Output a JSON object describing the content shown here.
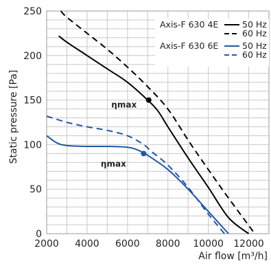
{
  "chart_data": {
    "type": "line",
    "xlabel": "Air flow [m³/h]",
    "ylabel": "Static pressure [Pa]",
    "xlim": [
      2000,
      13000
    ],
    "ylim": [
      0,
      250
    ],
    "x_ticks": [
      2000,
      4000,
      6000,
      8000,
      10000,
      12000
    ],
    "y_ticks": [
      0,
      50,
      100,
      150,
      200,
      250
    ],
    "grid": true,
    "legend_position": "top-right",
    "legend": [
      {
        "model": "Axis-F 630 4E",
        "entries": [
          "50 Hz",
          "60 Hz"
        ]
      },
      {
        "model": "Axis-F 630 6E",
        "entries": [
          "50 Hz",
          "60 Hz"
        ]
      }
    ],
    "series": [
      {
        "key": "4e_50",
        "color": "#000000",
        "dashed": false,
        "x": [
          2600,
          3000,
          4000,
          5000,
          6000,
          7000,
          7500,
          8000,
          9000,
          10000,
          11000,
          12000
        ],
        "y": [
          222,
          215,
          200,
          185,
          170,
          150,
          138,
          120,
          85,
          52,
          18,
          0
        ]
      },
      {
        "key": "4e_60",
        "color": "#000000",
        "dashed": true,
        "x": [
          2700,
          3000,
          4000,
          5000,
          6000,
          7000,
          8000,
          9000,
          10000,
          11000,
          12300
        ],
        "y": [
          250,
          243,
          225,
          207,
          187,
          165,
          140,
          105,
          72,
          40,
          0
        ]
      },
      {
        "key": "6e_50",
        "color": "#1f57a8",
        "dashed": false,
        "x": [
          2000,
          2500,
          3000,
          4000,
          5000,
          6000,
          6500,
          7000,
          8000,
          9000,
          10000,
          11000
        ],
        "y": [
          110,
          102,
          99,
          98,
          98,
          97,
          94,
          88,
          72,
          50,
          25,
          0
        ]
      },
      {
        "key": "6e_60",
        "color": "#1f57a8",
        "dashed": true,
        "x": [
          2000,
          3000,
          4000,
          5000,
          6000,
          6800,
          7200,
          8000,
          9000,
          10000,
          10800
        ],
        "y": [
          132,
          125,
          120,
          116,
          110,
          100,
          92,
          77,
          52,
          22,
          0
        ]
      }
    ],
    "eta_points": [
      {
        "label": "ηmax",
        "x": 7050,
        "y": 150,
        "color": "#000000"
      },
      {
        "label": "ηmax",
        "x": 6800,
        "y": 90,
        "color": "#1f57a8"
      }
    ]
  }
}
